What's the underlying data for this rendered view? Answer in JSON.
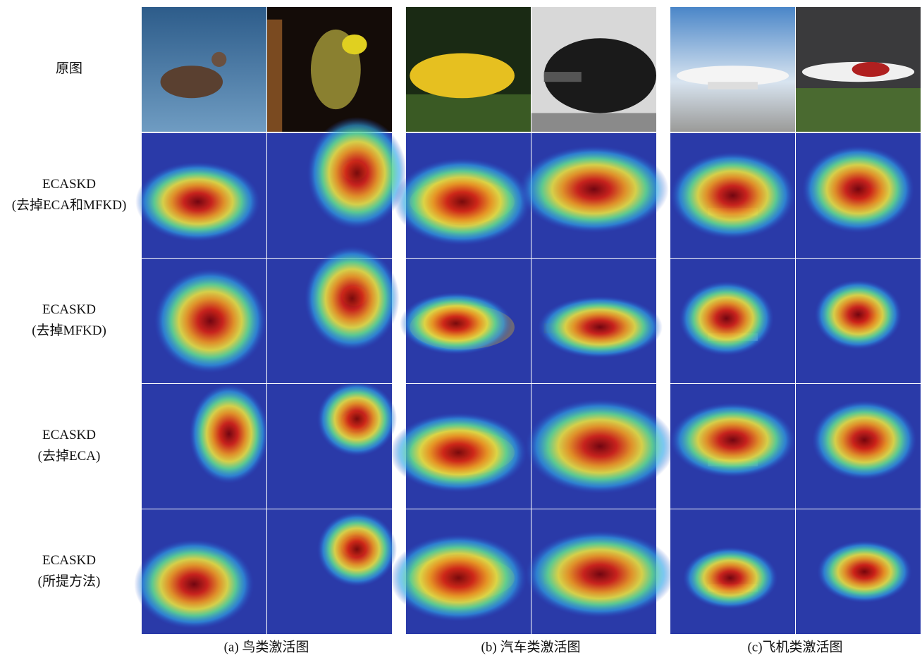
{
  "row_labels": [
    {
      "lines": [
        "原图"
      ]
    },
    {
      "lines": [
        "ECASKD",
        "(去掉ECA和MFKD)"
      ]
    },
    {
      "lines": [
        "ECASKD",
        "(去掉MFKD)"
      ]
    },
    {
      "lines": [
        "ECASKD",
        "(去掉ECA)"
      ]
    },
    {
      "lines": [
        "ECASKD",
        "(所提方法)"
      ]
    }
  ],
  "captions": [
    "(a) 鸟类激活图",
    "(b) 汽车类激活图",
    "(c)飞机类激活图"
  ]
}
